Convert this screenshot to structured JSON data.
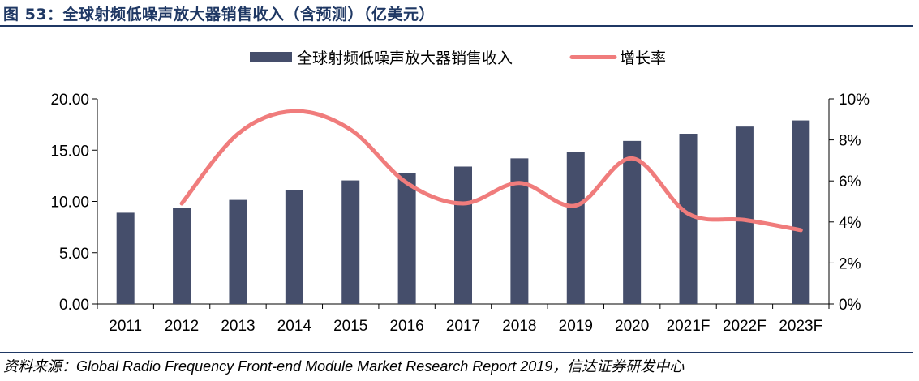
{
  "header": {
    "title": "图 53：全球射频低噪声放大器销售收入（含预测）（亿美元）"
  },
  "footer": {
    "source": "资料来源：Global Radio Frequency Front-end Module Market Research Report 2019，信达证券研发中心"
  },
  "colors": {
    "bar": "#454e6b",
    "line": "#f07c7c",
    "title": "#1f3864"
  },
  "chart_data": {
    "type": "bar",
    "categories": [
      "2011",
      "2012",
      "2013",
      "2014",
      "2015",
      "2016",
      "2017",
      "2018",
      "2019",
      "2020",
      "2021F",
      "2022F",
      "2023F"
    ],
    "series": [
      {
        "name": "全球射频低噪声放大器销售收入",
        "type": "bar",
        "axis": "left",
        "values": [
          8.9,
          9.35,
          10.15,
          11.1,
          12.05,
          12.75,
          13.4,
          14.2,
          14.85,
          15.9,
          16.6,
          17.3,
          17.9
        ]
      },
      {
        "name": "增长率",
        "type": "line",
        "axis": "right",
        "smooth": true,
        "values": [
          null,
          0.049,
          0.083,
          0.094,
          0.085,
          0.059,
          0.049,
          0.059,
          0.048,
          0.071,
          0.044,
          0.041,
          0.036
        ]
      }
    ],
    "y_left": {
      "ylim": [
        0,
        20
      ],
      "ticks": [
        "0.00",
        "5.00",
        "10.00",
        "15.00",
        "20.00"
      ]
    },
    "y_right": {
      "ylim": [
        0,
        0.1
      ],
      "ticks": [
        "0%",
        "2%",
        "4%",
        "6%",
        "8%",
        "10%"
      ]
    },
    "legend_position": "top",
    "grid": false
  }
}
